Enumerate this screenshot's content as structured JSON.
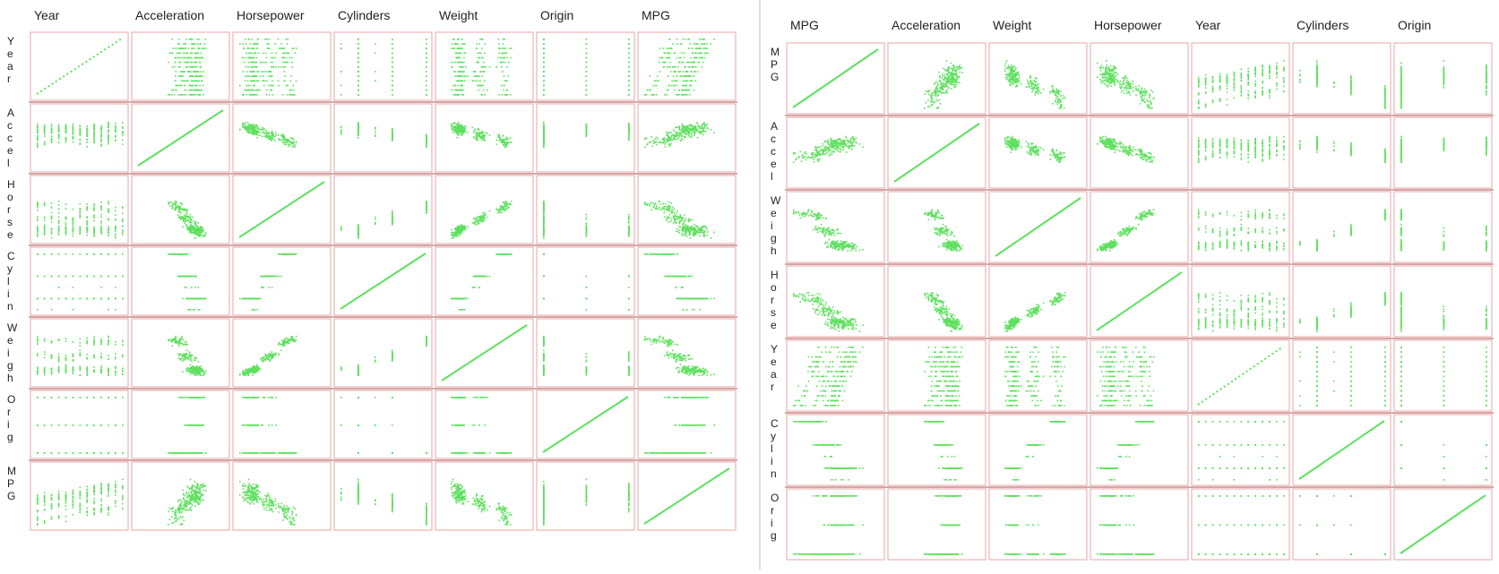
{
  "panels": [
    {
      "id": "left-matrix",
      "columns": [
        "Year",
        "Acceleration",
        "Horsepower",
        "Cylinders",
        "Weight",
        "Origin",
        "MPG"
      ],
      "rows": [
        "Year",
        "Acceleration",
        "Horsepower",
        "Cylinders",
        "Weight",
        "Origin",
        "MPG"
      ],
      "row_labels": [
        "Y\ne\na\nr",
        "A\nc\nc\ne\nl",
        "H\no\nr\ns\ne",
        "C\ny\nl\ni\nn",
        "W\ne\ni\ng\nh",
        "O\nr\ni\ng",
        "M\nP\nG"
      ]
    },
    {
      "id": "right-matrix",
      "columns": [
        "MPG",
        "Acceleration",
        "Weight",
        "Horsepower",
        "Year",
        "Cylinders",
        "Origin"
      ],
      "rows": [
        "MPG",
        "Acceleration",
        "Weight",
        "Horsepower",
        "Year",
        "Cylinders",
        "Origin"
      ],
      "row_labels": [
        "M\nP\nG",
        "A\nc\nc\ne\nl",
        "W\ne\ni\ng\nh",
        "H\no\nr\ns\ne",
        "Y\ne\na\nr",
        "C\ny\nl\ni\nn",
        "O\nr\ni\ng"
      ]
    }
  ],
  "colors": {
    "point": "#5fe05f",
    "cell_border": "#e8a6a6",
    "row_divider": "#c98a8a",
    "background": "#ffffff",
    "label": "#222222"
  },
  "chart_data": [
    {
      "type": "scatter",
      "variant": "scatterplot-matrix",
      "title": "",
      "variables": [
        "Year",
        "Acceleration",
        "Horsepower",
        "Cylinders",
        "Weight",
        "Origin",
        "MPG"
      ],
      "diagonal": "identity line",
      "grid": false,
      "legend": "none",
      "ranges": {
        "Year": [
          70,
          82
        ],
        "Acceleration": [
          8,
          24.8
        ],
        "Horsepower": [
          46,
          230
        ],
        "Cylinders": [
          3,
          8
        ],
        "Weight": [
          1613,
          5140
        ],
        "Origin": [
          1,
          3
        ],
        "MPG": [
          9,
          46.6
        ]
      },
      "categorical": [
        "Cylinders",
        "Origin"
      ],
      "cylinder_levels": [
        3,
        4,
        5,
        6,
        8
      ],
      "origin_levels": [
        1,
        2,
        3
      ]
    },
    {
      "type": "scatter",
      "variant": "scatterplot-matrix",
      "title": "",
      "variables": [
        "MPG",
        "Acceleration",
        "Weight",
        "Horsepower",
        "Year",
        "Cylinders",
        "Origin"
      ],
      "diagonal": "identity line",
      "grid": false,
      "legend": "none",
      "ranges": {
        "Year": [
          70,
          82
        ],
        "Acceleration": [
          8,
          24.8
        ],
        "Horsepower": [
          46,
          230
        ],
        "Cylinders": [
          3,
          8
        ],
        "Weight": [
          1613,
          5140
        ],
        "Origin": [
          1,
          3
        ],
        "MPG": [
          9,
          46.6
        ]
      },
      "categorical": [
        "Cylinders",
        "Origin"
      ],
      "cylinder_levels": [
        3,
        4,
        5,
        6,
        8
      ],
      "origin_levels": [
        1,
        2,
        3
      ]
    }
  ]
}
